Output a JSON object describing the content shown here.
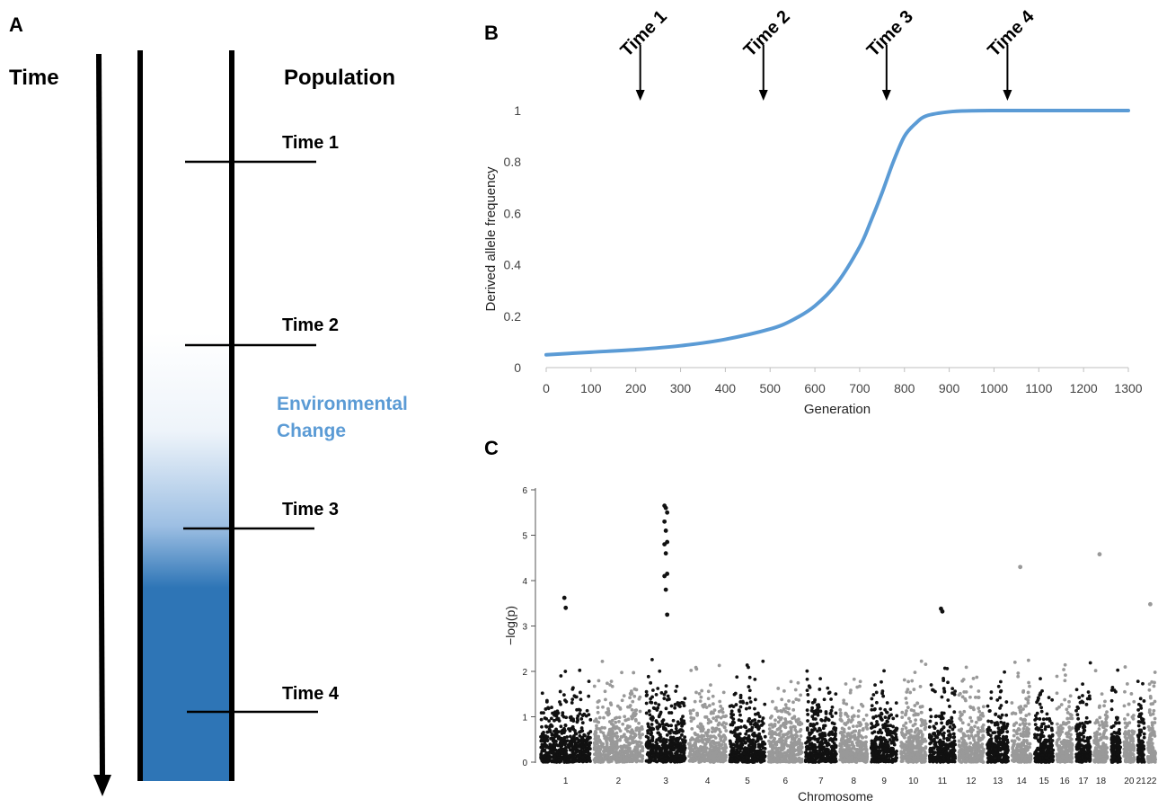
{
  "panelA": {
    "label": "A",
    "time_title": "Time",
    "population_title": "Population",
    "env_label_line1": "Environmental",
    "env_label_line2": "Change",
    "time_points": [
      "Time 1",
      "Time 2",
      "Time 3",
      "Time 4"
    ],
    "colors": {
      "population_fill": "#2e75b6",
      "env_text": "#5b9bd5"
    }
  },
  "panelB": {
    "label": "B",
    "chart_data": {
      "type": "line",
      "xlabel": "Generation",
      "ylabel": "Derived allele frequency",
      "xlim": [
        0,
        1300
      ],
      "ylim": [
        0,
        1
      ],
      "x_ticks": [
        "0",
        "100",
        "200",
        "300",
        "400",
        "500",
        "600",
        "700",
        "800",
        "900",
        "1000",
        "1100",
        "1200",
        "1300"
      ],
      "y_ticks": [
        "0",
        "0.2",
        "0.4",
        "0.6",
        "0.8",
        "1"
      ],
      "series": [
        {
          "color": "#5b9bd5",
          "x": [
            0,
            100,
            200,
            300,
            400,
            500,
            550,
            600,
            650,
            700,
            725,
            750,
            775,
            800,
            825,
            850,
            900,
            950,
            1000,
            1100,
            1200,
            1300
          ],
          "y": [
            0.05,
            0.06,
            0.07,
            0.085,
            0.11,
            0.15,
            0.185,
            0.24,
            0.33,
            0.47,
            0.57,
            0.68,
            0.8,
            0.9,
            0.95,
            0.98,
            0.995,
            0.999,
            1.0,
            1.0,
            1.0,
            1.0
          ]
        }
      ],
      "annotations": [
        {
          "text": "Time 1",
          "x": 210
        },
        {
          "text": "Time 2",
          "x": 485
        },
        {
          "text": "Time 3",
          "x": 760
        },
        {
          "text": "Time 4",
          "x": 1030
        }
      ]
    }
  },
  "panelC": {
    "label": "C",
    "chart_data": {
      "type": "scatter",
      "xlabel": "Chromosome",
      "ylabel": "−log(p)",
      "ylim": [
        0,
        6
      ],
      "y_ticks": [
        "0",
        "1",
        "2",
        "3",
        "4",
        "5",
        "6"
      ],
      "categories": [
        "1",
        "2",
        "3",
        "4",
        "5",
        "6",
        "7",
        "8",
        "9",
        "10",
        "11",
        "12",
        "13",
        "14",
        "15",
        "16",
        "17",
        "18",
        "20",
        "21",
        "22"
      ],
      "colors": [
        "#111111",
        "#999999"
      ],
      "peaks": [
        {
          "chromosome": "3",
          "values": [
            5.65,
            5.6,
            5.5,
            5.3,
            5.1,
            4.85,
            4.8,
            4.6,
            4.15,
            4.1,
            3.8,
            3.25
          ]
        },
        {
          "chromosome": "18",
          "values": [
            4.58
          ]
        },
        {
          "chromosome": "14",
          "values": [
            4.3
          ]
        },
        {
          "chromosome": "1",
          "values": [
            3.62,
            3.4
          ]
        },
        {
          "chromosome": "22",
          "values": [
            3.48
          ]
        },
        {
          "chromosome": "11",
          "values": [
            3.38,
            3.32
          ]
        }
      ]
    }
  }
}
